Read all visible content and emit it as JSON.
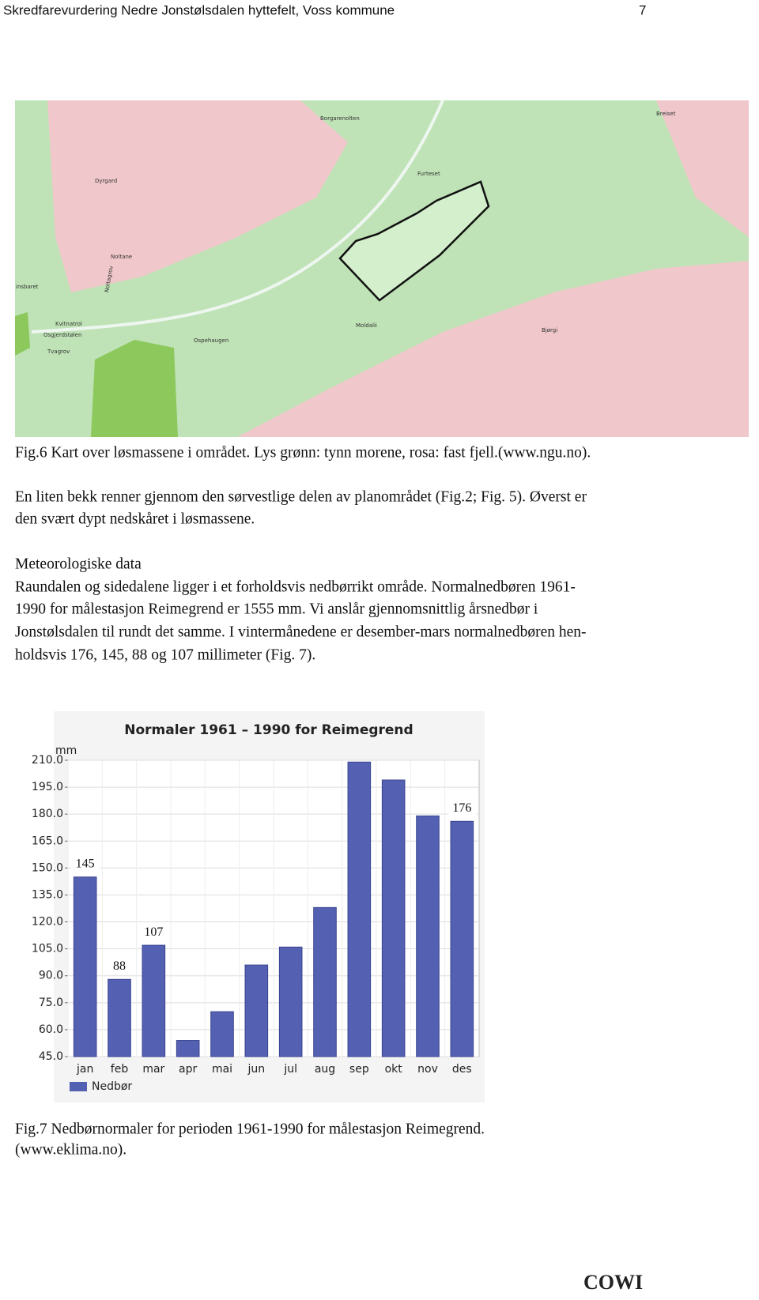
{
  "header": {
    "title": "Skredfarevurdering Nedre Jonstølsdalen hyttefelt, Voss kommune",
    "page": "7"
  },
  "map": {
    "labels": [
      "Borgarenolten",
      "Breiset",
      "Dyrgard",
      "Furteset",
      "Noltane",
      "Noltagrov",
      "insbaret",
      "Kvitnatrol",
      "Osgjerdstølen",
      "Tvagrov",
      "Ospehaugen",
      "Moldalii",
      "Bjørgi"
    ]
  },
  "figure6_caption": "Fig.6 Kart over løsmassene i området. Lys grønn: tynn morene, rosa: fast fjell.(www.ngu.no).",
  "paragraph1": [
    "En liten bekk renner gjennom den sørvestlige delen av planområdet (Fig.2; Fig. 5). Øverst er",
    "den svært dypt nedskåret i løsmassene."
  ],
  "section_heading": "Meteorologiske data",
  "paragraph2": [
    "Raundalen og sidedalene ligger i et forholdsvis nedbørrikt område. Normalnedbøren 1961-",
    "1990 for målestasjon Reimegrend er 1555 mm. Vi anslår gjennomsnittlig årsnedbør i",
    "Jonstølsdalen til rundt det samme.  I vintermånedene er desember-mars normalnedbøren hen-",
    "holdsvis 176, 145, 88 og 107 millimeter (Fig. 7)."
  ],
  "chart_data": {
    "type": "bar",
    "title": "Normaler 1961 – 1990 for Reimegrend",
    "y_label": "mm",
    "categories": [
      "jan",
      "feb",
      "mar",
      "apr",
      "mai",
      "jun",
      "jul",
      "aug",
      "sep",
      "okt",
      "nov",
      "des"
    ],
    "series": [
      {
        "name": "Nedbør",
        "color": "#5460b2",
        "values": [
          145,
          88,
          107,
          54,
          70,
          96,
          106,
          128,
          209,
          199,
          179,
          176
        ],
        "value_labels": [
          "145",
          "88",
          "107",
          null,
          null,
          null,
          null,
          null,
          null,
          null,
          null,
          "176"
        ]
      }
    ],
    "ylim": [
      45,
      210
    ],
    "yticks": [
      {
        "value": 45,
        "label": "45.0"
      },
      {
        "value": 60,
        "label": "60.0"
      },
      {
        "value": 75,
        "label": "75.0"
      },
      {
        "value": 90,
        "label": "90.0"
      },
      {
        "value": 105,
        "label": "105.0"
      },
      {
        "value": 120,
        "label": "120.0"
      },
      {
        "value": 135,
        "label": "135.0"
      },
      {
        "value": 150,
        "label": "150.0"
      },
      {
        "value": 165,
        "label": "165.0"
      },
      {
        "value": 180,
        "label": "180.0"
      },
      {
        "value": 195,
        "label": "195.0"
      },
      {
        "value": 210,
        "label": "210.0"
      }
    ],
    "grid": true,
    "legend": "bottom-left"
  },
  "figure7_caption": [
    "Fig.7 Nedbørnormaler for perioden 1961-1990 for målestasjon Reimegrend.",
    "(www.eklima.no)."
  ],
  "footer_logo": "COWI"
}
